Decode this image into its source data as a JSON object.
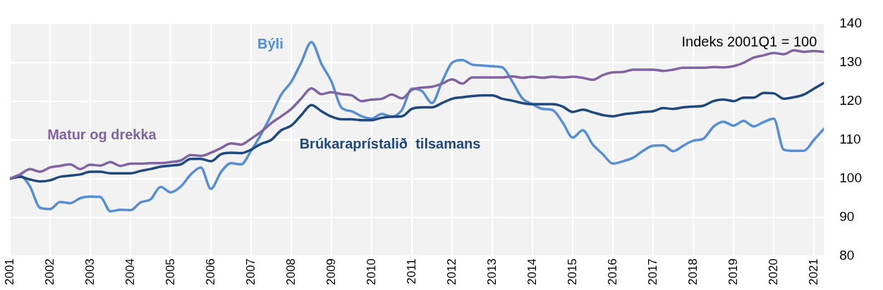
{
  "chart_data": {
    "type": "line",
    "x": [
      2001,
      2001.25,
      2001.5,
      2001.75,
      2002,
      2002.25,
      2002.5,
      2002.75,
      2003,
      2003.25,
      2003.5,
      2003.75,
      2004,
      2004.25,
      2004.5,
      2004.75,
      2005,
      2005.25,
      2005.5,
      2005.75,
      2006,
      2006.25,
      2006.5,
      2006.75,
      2007,
      2007.25,
      2007.5,
      2007.75,
      2008,
      2008.25,
      2008.5,
      2008.75,
      2009,
      2009.25,
      2009.5,
      2009.75,
      2010,
      2010.25,
      2010.5,
      2010.75,
      2011,
      2011.25,
      2011.5,
      2011.75,
      2012,
      2012.25,
      2012.5,
      2012.75,
      2013,
      2013.25,
      2013.5,
      2013.75,
      2014,
      2014.25,
      2014.5,
      2014.75,
      2015,
      2015.25,
      2015.5,
      2015.75,
      2016,
      2016.25,
      2016.5,
      2016.75,
      2017,
      2017.25,
      2017.5,
      2017.75,
      2018,
      2018.25,
      2018.5,
      2018.75,
      2019,
      2019.25,
      2019.5,
      2019.75,
      2020,
      2020.25,
      2020.5,
      2020.75,
      2021,
      2021.25
    ],
    "series": [
      {
        "name": "Matur og drekka",
        "color": "#8064a2",
        "values": [
          100,
          101.1,
          102.5,
          101.8,
          102.9,
          103.3,
          103.7,
          102.5,
          103.6,
          103.4,
          104.3,
          103.3,
          103.9,
          103.9,
          104,
          104,
          104.3,
          104.7,
          106.1,
          105.9,
          106.7,
          107.9,
          109.1,
          108.8,
          110.3,
          112.1,
          114.3,
          116.1,
          118,
          120.7,
          123.3,
          121.8,
          122.3,
          121.8,
          121.5,
          120,
          120.4,
          120.6,
          121.7,
          120.7,
          122.9,
          123.5,
          123.7,
          124.5,
          125.6,
          124.5,
          126.1,
          126.1,
          126.1,
          126.1,
          126.4,
          126,
          126.3,
          126,
          126.3,
          126.1,
          126.3,
          126,
          125.5,
          126.7,
          127.4,
          127.5,
          128.1,
          128.1,
          128.1,
          127.8,
          128.1,
          128.6,
          128.6,
          128.6,
          128.8,
          128.7,
          129,
          129.9,
          131.2,
          131.8,
          132.4,
          132.1,
          133.1,
          132.7,
          132.9,
          132.7
        ]
      },
      {
        "name": "Brúkaraprístalið  tilsamans",
        "color": "#1f497d",
        "values": [
          100,
          100.5,
          99.8,
          99.3,
          99.6,
          100.5,
          100.8,
          101.1,
          101.8,
          101.8,
          101.4,
          101.4,
          101.4,
          102,
          102.5,
          103.1,
          103.4,
          103.7,
          105.1,
          105.1,
          104.5,
          106.3,
          106.7,
          106.6,
          107.5,
          109,
          110,
          112.5,
          113.7,
          116.4,
          119,
          117.4,
          116,
          115.3,
          115.3,
          115.1,
          115.1,
          115.7,
          116,
          116.1,
          118,
          118.4,
          118.4,
          119.5,
          120.6,
          121,
          121.3,
          121.5,
          121.5,
          120.6,
          120.1,
          119.5,
          119.2,
          119.2,
          119.2,
          118.6,
          117.2,
          117.8,
          117.1,
          116.4,
          116.1,
          116.6,
          116.9,
          117.2,
          117.4,
          118.2,
          118,
          118.4,
          118.6,
          118.8,
          120,
          120.4,
          120,
          120.9,
          120.9,
          122.1,
          122,
          120.6,
          121,
          121.7,
          123.2,
          124.7
        ]
      },
      {
        "name": "Býli",
        "color": "#558ed5",
        "values": [
          100,
          100.8,
          98,
          92.5,
          92.2,
          94,
          93.7,
          95,
          95.4,
          95.3,
          91.6,
          92,
          91.9,
          93.9,
          94.7,
          97.9,
          96.5,
          98,
          101.1,
          102.9,
          97.4,
          101.7,
          104,
          103.7,
          107.2,
          111.5,
          116.4,
          121.7,
          125,
          130,
          135.2,
          129.6,
          125,
          118.3,
          117.4,
          116.1,
          115.5,
          116.7,
          116,
          117.7,
          123.2,
          122.6,
          119.5,
          125,
          129.9,
          130.6,
          129.4,
          129.2,
          129,
          128.7,
          125,
          120.7,
          119.2,
          118,
          117.7,
          114.5,
          110.6,
          112.5,
          108.8,
          106.3,
          103.9,
          104.5,
          105.4,
          107.2,
          108.5,
          108.6,
          107.1,
          108.5,
          109.8,
          110.3,
          113.4,
          114.7,
          113.7,
          114.9,
          113.5,
          114.6,
          115.5,
          107.5,
          107.2,
          107.2,
          110,
          112.9
        ]
      }
    ],
    "xlim": [
      2001,
      2021.25
    ],
    "xticks": [
      2001,
      2002,
      2003,
      2004,
      2005,
      2006,
      2007,
      2008,
      2009,
      2010,
      2011,
      2012,
      2013,
      2014,
      2015,
      2016,
      2017,
      2018,
      2019,
      2020,
      2021
    ],
    "ylim": [
      80,
      140
    ],
    "yticks": [
      80,
      90,
      100,
      110,
      120,
      130,
      140
    ],
    "grid": true,
    "line_style": "solid",
    "marker": "none",
    "annotations": [
      "Indeks 2001Q1 = 100"
    ]
  }
}
